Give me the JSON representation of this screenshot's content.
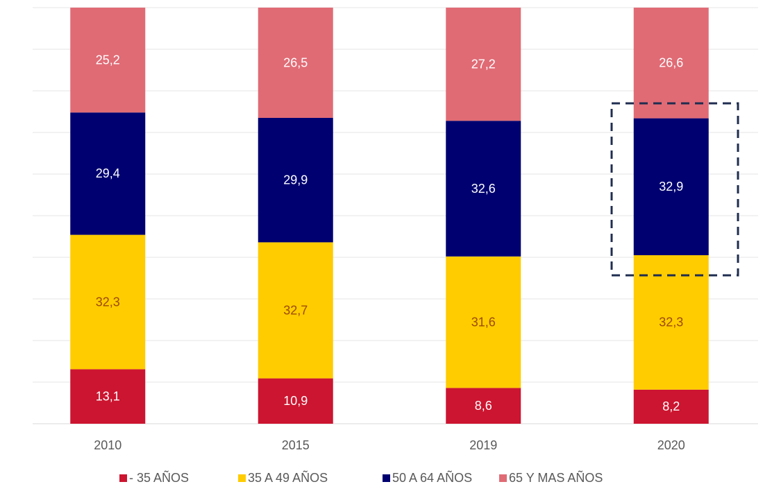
{
  "chart_data": {
    "type": "bar",
    "stacked": true,
    "categories": [
      "2010",
      "2015",
      "2019",
      "2020"
    ],
    "series": [
      {
        "name": "- 35 AÑOS",
        "color": "#cc1530",
        "values": [
          13.1,
          10.9,
          8.6,
          8.2
        ],
        "value_labels": [
          "13,1",
          "10,9",
          "8,6",
          "8,2"
        ]
      },
      {
        "name": "35 A 49 AÑOS",
        "color": "#ffcc00",
        "values": [
          32.3,
          32.7,
          31.6,
          32.3
        ],
        "value_labels": [
          "32,3",
          "32,7",
          "31,6",
          "32,3"
        ]
      },
      {
        "name": "50 A 64 AÑOS",
        "color": "#000070",
        "values": [
          29.4,
          29.9,
          32.6,
          32.9
        ],
        "value_labels": [
          "29,4",
          "29,9",
          "32,6",
          "32,9"
        ]
      },
      {
        "name": "65 Y MAS AÑOS",
        "color": "#e06b75",
        "values": [
          25.2,
          26.5,
          27.2,
          26.6
        ],
        "value_labels": [
          "25,2",
          "26,5",
          "27,2",
          "26,6"
        ]
      }
    ],
    "ylim": [
      0,
      100
    ],
    "yticks": [
      0,
      10,
      20,
      30,
      40,
      50,
      60,
      70,
      80,
      90,
      100
    ],
    "grid": true,
    "legend": "bottom"
  }
}
